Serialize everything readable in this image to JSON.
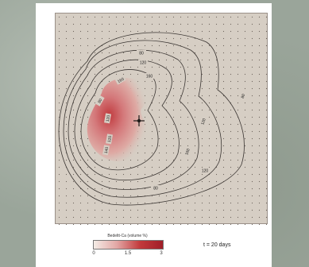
{
  "legend": {
    "title": "Bedeltt-Ca (volume %)",
    "ticks": [
      "0",
      "1.5",
      "3"
    ],
    "colors": [
      "#f4ece6",
      "#c23a3c",
      "#a01e28"
    ]
  },
  "time_label": "t = 20 days",
  "contours": {
    "labels": [
      "80",
      "120",
      "160",
      "160",
      "80",
      "120",
      "120",
      "140",
      "120",
      "160",
      "80",
      "120",
      "80"
    ]
  }
}
